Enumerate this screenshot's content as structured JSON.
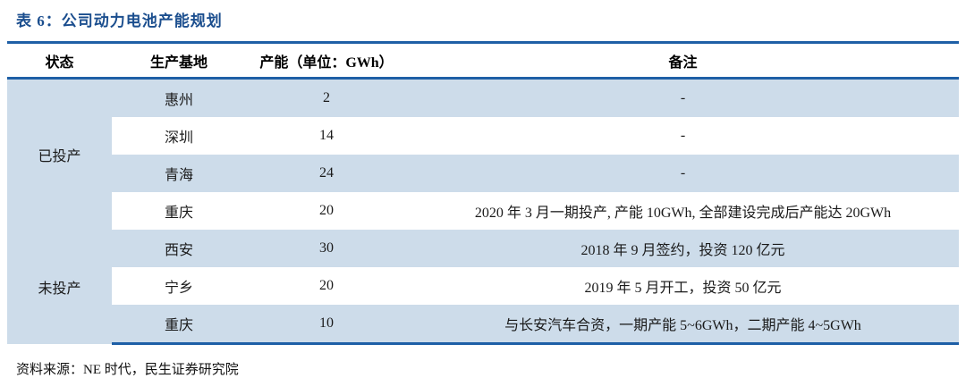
{
  "title": "表 6：公司动力电池产能规划",
  "table": {
    "headers": {
      "status": "状态",
      "base": "生产基地",
      "capacity": "产能（单位：GWh）",
      "note": "备注"
    },
    "groups": [
      {
        "status": "已投产"
      },
      {
        "status": "未投产"
      }
    ],
    "rows": [
      {
        "base": "惠州",
        "capacity": "2",
        "note": "-"
      },
      {
        "base": "深圳",
        "capacity": "14",
        "note": "-"
      },
      {
        "base": "青海",
        "capacity": "24",
        "note": "-"
      },
      {
        "base": "重庆",
        "capacity": "20",
        "note": "2020 年 3 月一期投产, 产能 10GWh, 全部建设完成后产能达 20GWh"
      },
      {
        "base": "西安",
        "capacity": "30",
        "note": "2018 年 9 月签约，投资 120 亿元"
      },
      {
        "base": "宁乡",
        "capacity": "20",
        "note": "2019 年 5 月开工，投资 50 亿元"
      },
      {
        "base": "重庆",
        "capacity": "10",
        "note": "与长安汽车合资，一期产能 5~6GWh，二期产能 4~5GWh"
      }
    ]
  },
  "footer": {
    "source": "资料来源：NE 时代，民生证券研究院"
  },
  "colors": {
    "title_blue": "#1B4E8E",
    "rule_blue": "#1E5FA6",
    "row_shade": "#CDDCEA"
  }
}
